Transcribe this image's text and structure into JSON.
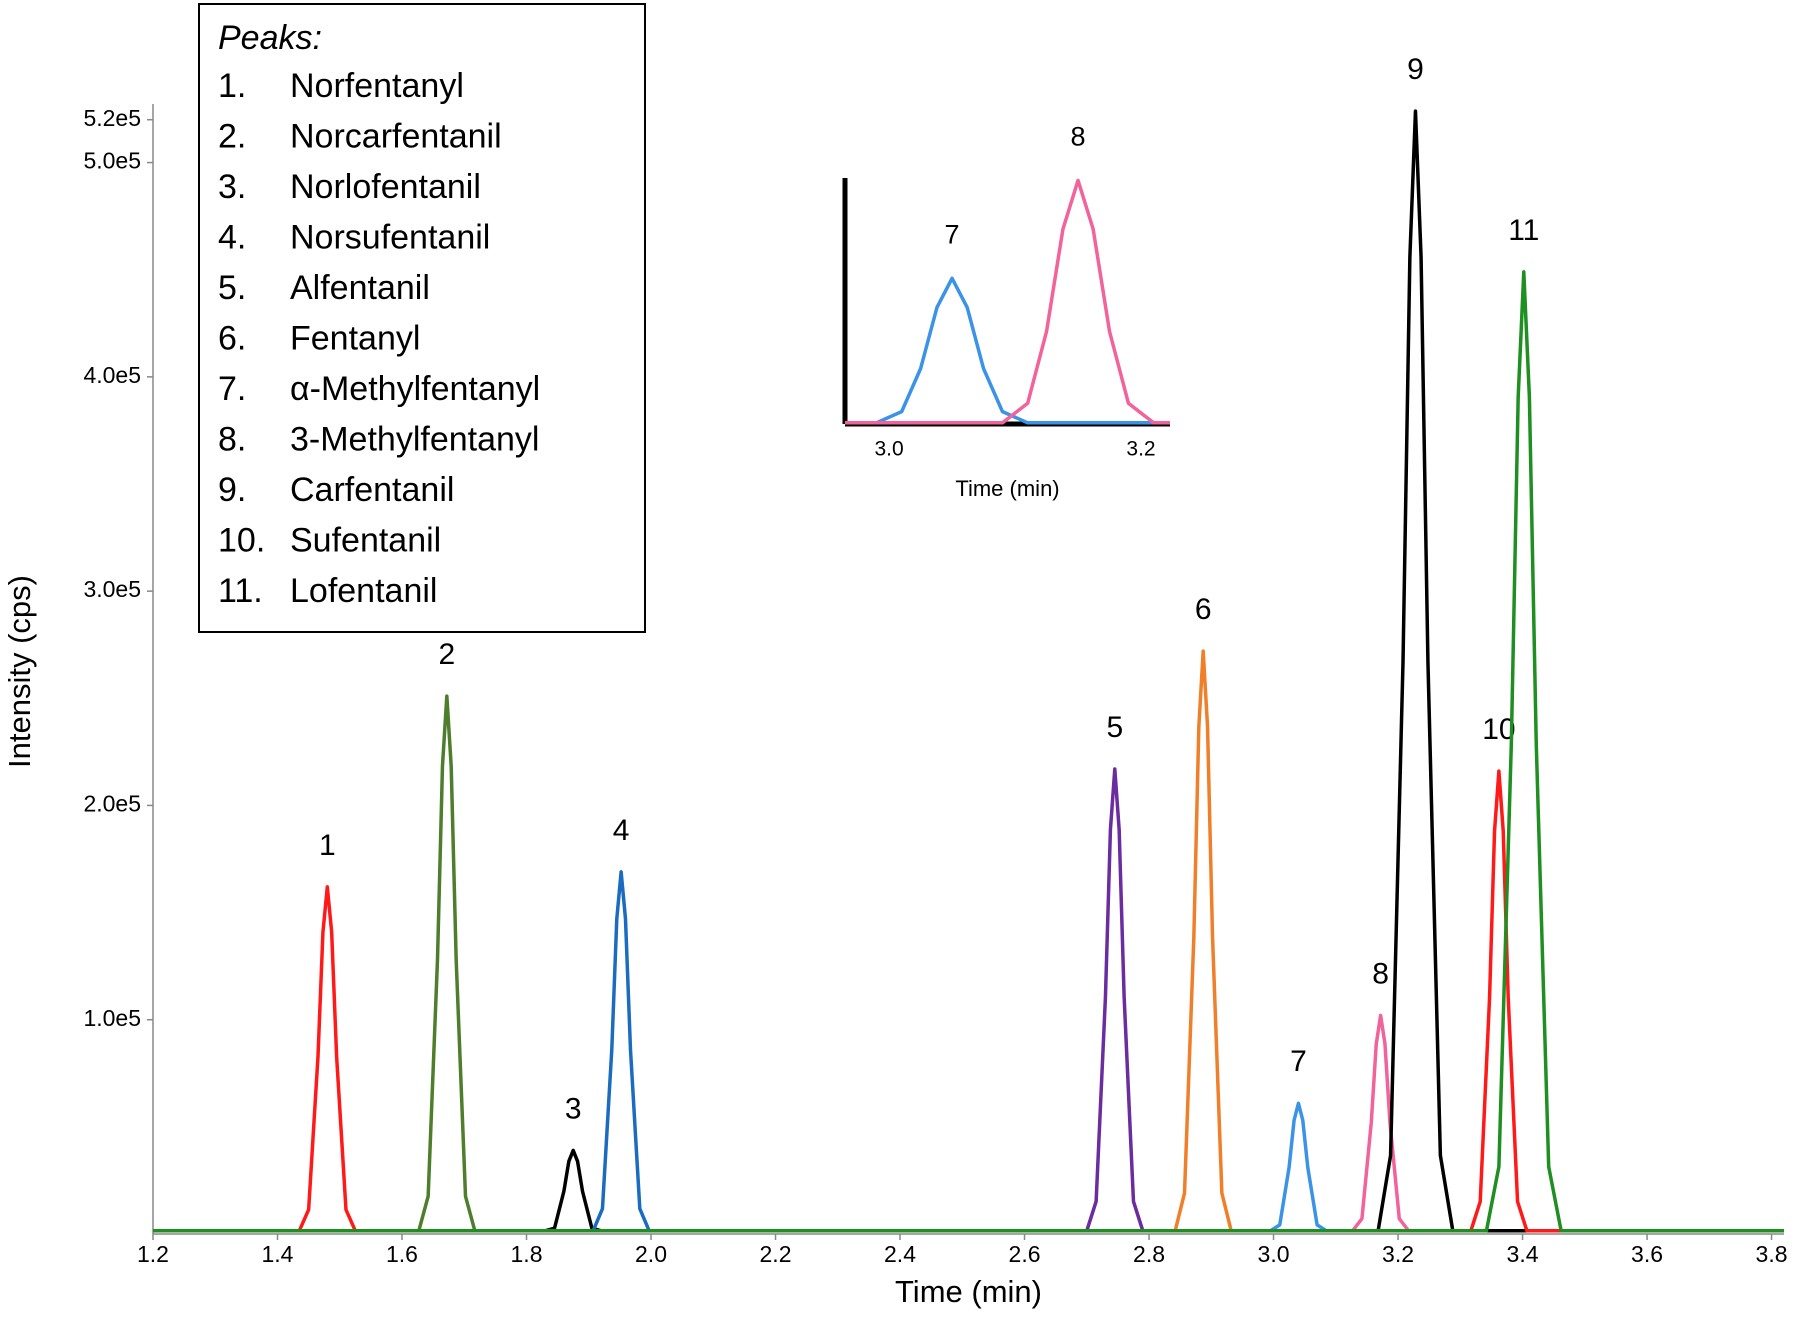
{
  "chart_data": [
    {
      "type": "line",
      "x_label": "Time (min)",
      "y_label": "Intensity (cps)",
      "xlim": [
        1.2,
        3.82
      ],
      "ylim": [
        0,
        525000
      ],
      "xticks": [
        1.2,
        1.4,
        1.6,
        1.8,
        {
          "value": 2,
          "label": "2.0"
        },
        2.2,
        2.4,
        2.6,
        2.8,
        {
          "value": 3,
          "label": "3.0"
        },
        3.2,
        3.4,
        3.6,
        3.8
      ],
      "yticks": [
        {
          "value": 100000,
          "label": "1.0e5"
        },
        {
          "value": 200000,
          "label": "2.0e5"
        },
        {
          "value": 300000,
          "label": "3.0e5"
        },
        {
          "value": 400000,
          "label": "4.0e5"
        },
        {
          "value": 500000,
          "label": "5.0e5"
        },
        {
          "value": 520000,
          "label": "5.2e5"
        }
      ],
      "legend": {
        "title": "Peaks:",
        "items": [
          {
            "number": "1.",
            "name": "Norfentanyl"
          },
          {
            "number": "2.",
            "name": "Norcarfentanil"
          },
          {
            "number": "3.",
            "name": "Norlofentanil"
          },
          {
            "number": "4.",
            "name": "Norsufentanil"
          },
          {
            "number": "5.",
            "name": "Alfentanil"
          },
          {
            "number": "6.",
            "name": "Fentanyl"
          },
          {
            "number": "7.",
            "name": "α-Methylfentanyl"
          },
          {
            "number": "8.",
            "name": "3-Methylfentanyl"
          },
          {
            "number": "9.",
            "name": "Carfentanil"
          },
          {
            "number": "10.",
            "name": "Sufentanil"
          },
          {
            "number": "11.",
            "name": "Lofentanil"
          }
        ]
      },
      "series": [
        {
          "peak_label": "1",
          "color": "#ff1a1a",
          "x": [
            1.2,
            1.435,
            1.45,
            1.465,
            1.473,
            1.48,
            1.487,
            1.495,
            1.51,
            1.525,
            3.82
          ],
          "values": [
            1500,
            1500,
            11340,
            82620,
            140940,
            162000,
            140940,
            82620,
            11340,
            1500,
            1500
          ]
        },
        {
          "peak_label": "2",
          "color": "#4e7d2b",
          "x": [
            1.2,
            1.627,
            1.642,
            1.657,
            1.665,
            1.672,
            1.679,
            1.687,
            1.702,
            1.717,
            3.82
          ],
          "values": [
            1500,
            1500,
            17570,
            128010,
            218370,
            251000,
            218370,
            128010,
            17570,
            1500,
            1500
          ]
        },
        {
          "peak_label": "3",
          "color": "#000000",
          "x": [
            1.2,
            1.83,
            1.845,
            1.86,
            1.868,
            1.875,
            1.882,
            1.89,
            1.905,
            1.92,
            3.82
          ],
          "values": [
            1500,
            1500,
            2730,
            19890,
            33930,
            39000,
            33930,
            19890,
            2730,
            1500,
            1500
          ]
        },
        {
          "peak_label": "4",
          "color": "#1b6cc0",
          "x": [
            1.2,
            1.907,
            1.922,
            1.937,
            1.945,
            1.952,
            1.959,
            1.967,
            1.982,
            1.997,
            3.82
          ],
          "values": [
            1500,
            1500,
            11830,
            86190,
            147030,
            169000,
            147030,
            86190,
            11830,
            1500,
            1500
          ]
        },
        {
          "peak_label": "5",
          "color": "#6a2c9e",
          "x": [
            1.2,
            2.7,
            2.715,
            2.73,
            2.738,
            2.745,
            2.752,
            2.76,
            2.775,
            2.79,
            3.82
          ],
          "values": [
            1500,
            1500,
            15190,
            110670,
            188790,
            217000,
            188790,
            110670,
            15190,
            1500,
            1500
          ]
        },
        {
          "peak_label": "6",
          "color": "#f07f2a",
          "x": [
            1.2,
            2.842,
            2.857,
            2.872,
            2.88,
            2.887,
            2.894,
            2.902,
            2.917,
            2.932,
            3.82
          ],
          "values": [
            1500,
            1500,
            19040,
            138720,
            236640,
            272000,
            236640,
            138720,
            19040,
            1500,
            1500
          ]
        },
        {
          "peak_label": "7",
          "color": "#3b93e8",
          "x": [
            1.2,
            2.995,
            3.01,
            3.025,
            3.033,
            3.04,
            3.047,
            3.055,
            3.07,
            3.085,
            3.82
          ],
          "values": [
            1500,
            1500,
            4270,
            31110,
            53070,
            61000,
            53070,
            31110,
            4270,
            1500,
            1500
          ]
        },
        {
          "peak_label": "8",
          "color": "#f2639b",
          "x": [
            1.2,
            3.127,
            3.142,
            3.157,
            3.165,
            3.172,
            3.179,
            3.187,
            3.202,
            3.217,
            3.82
          ],
          "values": [
            1500,
            1500,
            7140,
            52020,
            88740,
            102000,
            88740,
            52020,
            7140,
            1500,
            1500
          ]
        },
        {
          "peak_label": "9",
          "color": "#000000",
          "x": [
            1.2,
            3.168,
            3.188,
            3.208,
            3.219,
            3.228,
            3.237,
            3.248,
            3.268,
            3.288,
            3.82
          ],
          "values": [
            1500,
            1500,
            36680,
            267240,
            455880,
            524000,
            455880,
            267240,
            36680,
            1500,
            1500
          ]
        },
        {
          "peak_label": "10",
          "color": "#ff1a1a",
          "x": [
            1.2,
            3.317,
            3.332,
            3.347,
            3.355,
            3.362,
            3.369,
            3.377,
            3.392,
            3.407,
            3.82
          ],
          "values": [
            1500,
            1500,
            15120,
            110160,
            187920,
            216000,
            187920,
            110160,
            15120,
            1500,
            1500
          ]
        },
        {
          "peak_label": "11",
          "color": "#1f8f22",
          "x": [
            1.2,
            3.342,
            3.362,
            3.382,
            3.393,
            3.402,
            3.411,
            3.422,
            3.442,
            3.462,
            3.82
          ],
          "values": [
            1500,
            1500,
            31430,
            228990,
            390630,
            449000,
            390630,
            228990,
            31430,
            1500,
            1500
          ]
        }
      ]
    },
    {
      "type": "line",
      "x_label": "Time (min)",
      "xlim": [
        2.965,
        3.223
      ],
      "ylim": [
        0,
        103000
      ],
      "xticks": [
        {
          "value": 3,
          "label": "3.0"
        },
        3.2
      ],
      "series": [
        {
          "peak_label": "7",
          "color": "#3b93e8",
          "x": [
            2.965,
            2.99,
            3.01,
            3.025,
            3.038,
            3.05,
            3.062,
            3.075,
            3.09,
            3.11,
            3.223
          ],
          "values": [
            500,
            500,
            5185,
            23180,
            48800,
            61000,
            48800,
            23180,
            5185,
            500,
            500
          ]
        },
        {
          "peak_label": "8",
          "color": "#f2639b",
          "x": [
            2.965,
            3.09,
            3.11,
            3.125,
            3.138,
            3.15,
            3.162,
            3.175,
            3.19,
            3.21,
            3.223
          ],
          "values": [
            500,
            500,
            8670,
            38760,
            81600,
            102000,
            81600,
            38760,
            8670,
            500,
            500
          ]
        }
      ]
    }
  ]
}
